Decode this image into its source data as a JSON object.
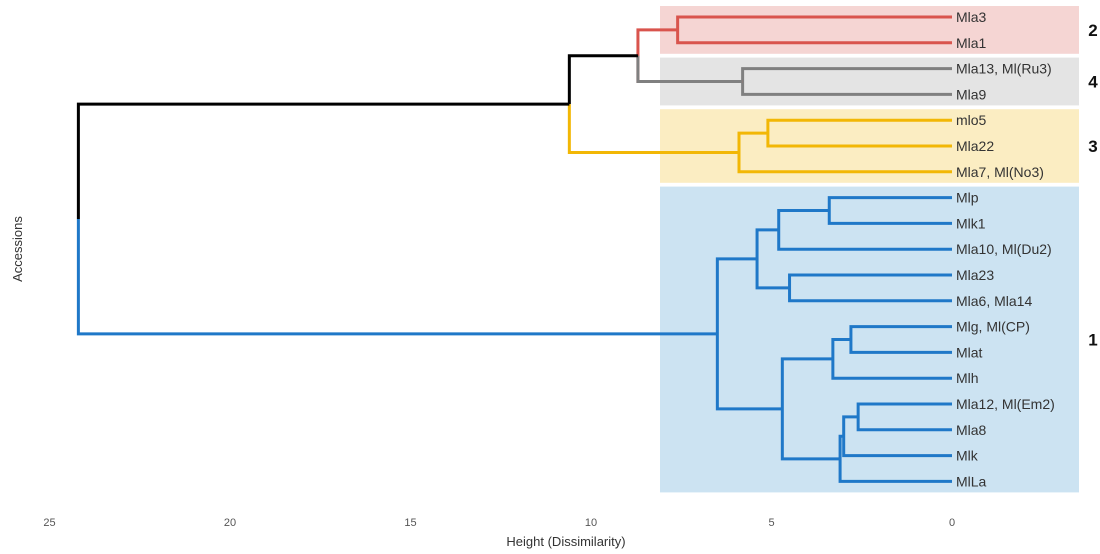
{
  "chart_data": {
    "type": "dendrogram",
    "xlabel": "Height (Dissimilarity)",
    "ylabel": "Accessions",
    "xlim": [
      25,
      0
    ],
    "x_ticks": [
      25,
      20,
      15,
      10,
      5,
      0
    ],
    "grid": false,
    "colors": {
      "group1": "#1f78c8",
      "group2": "#d9544d",
      "group3": "#f2b705",
      "group4": "#808080",
      "root": "#000000",
      "box1": "#cce3f2",
      "box2": "#f5d5d3",
      "box3": "#fbedc2",
      "box4": "#e4e4e4"
    },
    "leaves": [
      "Mla3",
      "Mla1",
      "Mla13, Ml(Ru3)",
      "Mla9",
      "mlo5",
      "Mla22",
      "Mla7, Ml(No3)",
      "Mlp",
      "Mlk1",
      "Mla10, Ml(Du2)",
      "Mla23",
      "Mla6, Mla14",
      "Mlg, Ml(CP)",
      "Mlat",
      "Mlh",
      "Mla12, Ml(Em2)",
      "Mla8",
      "Mlk",
      "MlLa"
    ],
    "merges": [
      {
        "left": "Mla3",
        "right": "Mla1",
        "height": 7.6,
        "group": "2"
      },
      {
        "left": "Mla13, Ml(Ru3)",
        "right": "Mla9",
        "height": 5.8,
        "group": "4"
      },
      {
        "left": "m2",
        "right": "m4",
        "height": 8.7,
        "group": "2"
      },
      {
        "left": "mlo5",
        "right": "Mla22",
        "height": 5.1,
        "group": "3"
      },
      {
        "left": "Mla7, Ml(No3)",
        "right": "m3a",
        "height": 5.9,
        "group": "3"
      },
      {
        "left": "m24",
        "right": "m3",
        "height": 10.6,
        "group": "root"
      },
      {
        "left": "Mlp",
        "right": "Mlk1",
        "height": 3.4,
        "group": "1"
      },
      {
        "left": "m1a",
        "right": "Mla10, Ml(Du2)",
        "height": 4.8,
        "group": "1"
      },
      {
        "left": "Mla23",
        "right": "Mla6, Mla14",
        "height": 4.5,
        "group": "1"
      },
      {
        "left": "m1b",
        "right": "m1c",
        "height": 5.4,
        "group": "1"
      },
      {
        "left": "Mlg, Ml(CP)",
        "right": "Mlat",
        "height": 2.8,
        "group": "1"
      },
      {
        "left": "m1e",
        "right": "Mlh",
        "height": 3.3,
        "group": "1"
      },
      {
        "left": "Mla12, Ml(Em2)",
        "right": "Mla8",
        "height": 2.6,
        "group": "1"
      },
      {
        "left": "m1g",
        "right": "Mlk",
        "height": 3.0,
        "group": "1"
      },
      {
        "left": "m1h",
        "right": "MlLa",
        "height": 3.1,
        "group": "1"
      },
      {
        "left": "m1f",
        "right": "m1i",
        "height": 4.7,
        "group": "1"
      },
      {
        "left": "m1d",
        "right": "m1j",
        "height": 6.5,
        "group": "1"
      },
      {
        "left": "m243",
        "right": "m1",
        "height": 24.2,
        "group": "root"
      }
    ],
    "groups": [
      {
        "label": "2",
        "leaves": [
          "Mla3",
          "Mla1"
        ]
      },
      {
        "label": "4",
        "leaves": [
          "Mla13, Ml(Ru3)",
          "Mla9"
        ]
      },
      {
        "label": "3",
        "leaves": [
          "mlo5",
          "Mla22",
          "Mla7, Ml(No3)"
        ]
      },
      {
        "label": "1",
        "leaves": [
          "Mlp",
          "Mlk1",
          "Mla10, Ml(Du2)",
          "Mla23",
          "Mla6, Mla14",
          "Mlg, Ml(CP)",
          "Mlat",
          "Mlh",
          "Mla12, Ml(Em2)",
          "Mla8",
          "Mlk",
          "MlLa"
        ]
      }
    ]
  }
}
